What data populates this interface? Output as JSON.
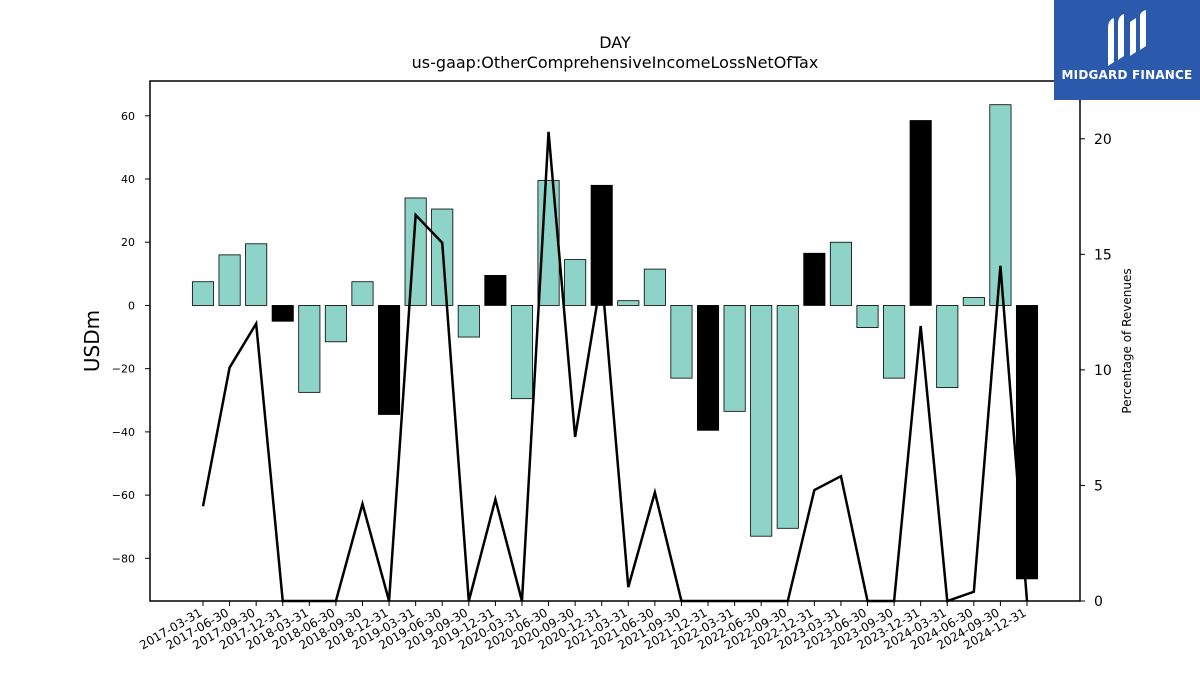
{
  "chart_data": {
    "type": "bar",
    "title": "DAY",
    "subtitle": "us-gaap:OtherComprehensiveIncomeLossNetOfTax",
    "ylabel": "USDm",
    "y2label": "Percentage of Revenues",
    "ylim": [
      -93.5,
      71
    ],
    "y2lim": [
      0,
      22.5
    ],
    "yticks": [
      60,
      40,
      20,
      0,
      -20,
      -40,
      -60,
      -80
    ],
    "y2ticks": [
      0,
      5,
      10,
      15,
      20
    ],
    "categories": [
      "2017-03-31",
      "2017-06-30",
      "2017-09-30",
      "2017-12-31",
      "2018-03-31",
      "2018-06-30",
      "2018-09-30",
      "2018-12-31",
      "2019-03-31",
      "2019-06-30",
      "2019-09-30",
      "2019-12-31",
      "2020-03-31",
      "2020-06-30",
      "2020-09-30",
      "2020-12-31",
      "2021-03-31",
      "2021-06-30",
      "2021-09-30",
      "2021-12-31",
      "2022-03-31",
      "2022-06-30",
      "2022-09-30",
      "2022-12-31",
      "2023-03-31",
      "2023-06-30",
      "2023-09-30",
      "2023-12-31",
      "2024-03-31",
      "2024-06-30",
      "2024-09-30",
      "2024-12-31"
    ],
    "values": [
      7.5,
      16,
      19.5,
      -5,
      -27.5,
      -11.5,
      7.5,
      -34.5,
      34,
      30.5,
      -10,
      9.5,
      -29.5,
      39.5,
      14.5,
      38,
      1.5,
      11.5,
      -23,
      -39.5,
      -33.5,
      -73,
      -70.5,
      16.5,
      20,
      -7,
      -23,
      58.5,
      -26,
      2.5,
      63.5,
      -86.5
    ],
    "highlight": [
      false,
      false,
      false,
      true,
      false,
      false,
      false,
      true,
      false,
      false,
      false,
      true,
      false,
      false,
      false,
      true,
      false,
      false,
      false,
      true,
      false,
      false,
      false,
      true,
      false,
      false,
      false,
      true,
      false,
      false,
      false,
      true
    ],
    "line_values": [
      4.1,
      10.1,
      12,
      0,
      0,
      0,
      4.2,
      0,
      16.7,
      15.5,
      0,
      4.4,
      0,
      20.3,
      7.1,
      14.1,
      0.6,
      4.7,
      0,
      0,
      0,
      0,
      0,
      4.8,
      5.4,
      0,
      0,
      11.9,
      0,
      0.4,
      14.5,
      0
    ],
    "colors": {
      "bar": "#8dd3c7",
      "bar_highlight": "#000000",
      "line": "#000000",
      "axis": "#000000"
    }
  },
  "logo": {
    "text": "MIDGARD FINANCE",
    "bg": "#2b5aad"
  }
}
